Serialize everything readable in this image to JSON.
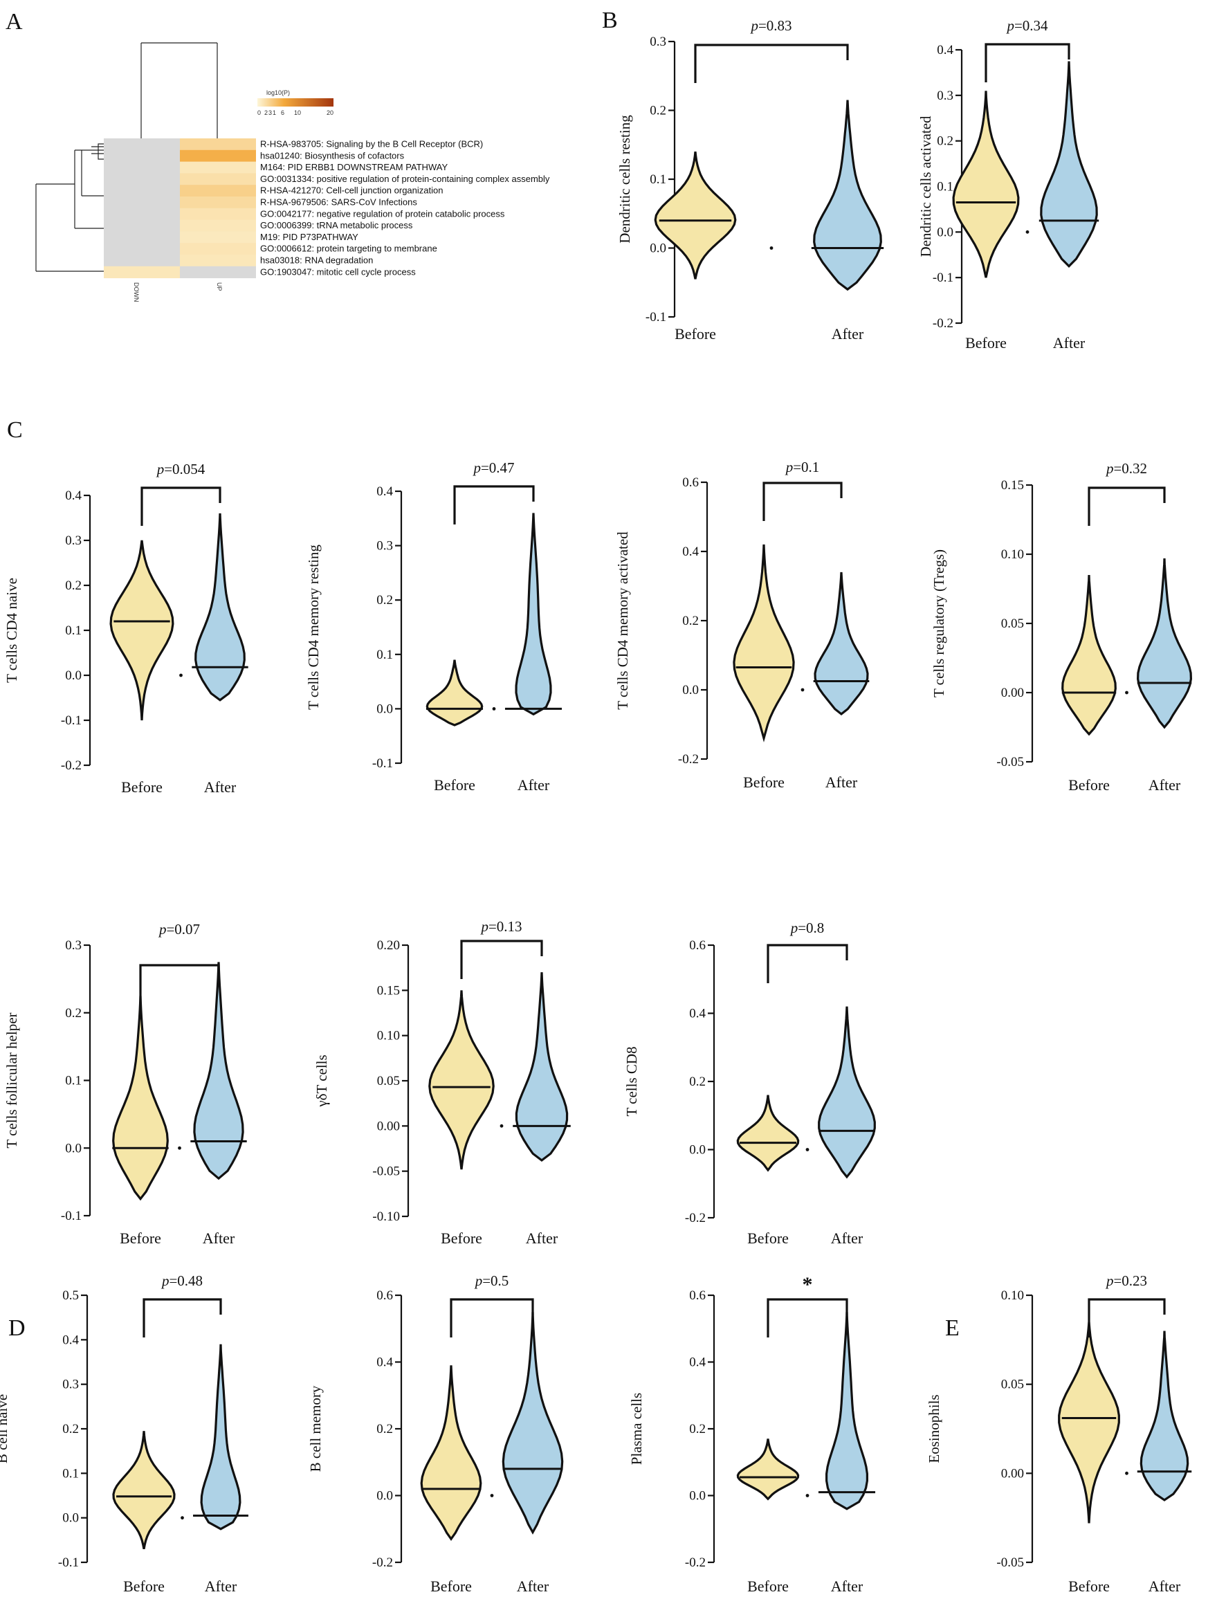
{
  "colors": {
    "before": "#f5e6a8",
    "after": "#aed2e6",
    "heat_low": "#fdf6d8",
    "heat_mid": "#f3a93c",
    "heat_high": "#a3360e",
    "heat_na": "#d9d9d9"
  },
  "heatmap": {
    "panel_label": "A",
    "legend_title": "log10(P)",
    "legend_ticks": [
      "0",
      "2",
      "3",
      "1",
      "6",
      "10",
      "20"
    ],
    "columns": [
      "DOWN",
      "UP"
    ],
    "terms": [
      "R-HSA-983705: Signaling by the B Cell Receptor (BCR)",
      "hsa01240: Biosynthesis of cofactors",
      "M164: PID ERBB1 DOWNSTREAM PATHWAY",
      "GO:0031334: positive regulation of protein-containing complex assembly",
      "R-HSA-421270: Cell-cell junction organization",
      "R-HSA-9679506: SARS-CoV Infections",
      "GO:0042177: negative regulation of protein catabolic process",
      "GO:0006399: tRNA metabolic process",
      "M19: PID P73PATHWAY",
      "GO:0006612: protein targeting to membrane",
      "hsa03018: RNA degradation",
      "GO:1903047: mitotic cell cycle process"
    ],
    "up_level": [
      0.25,
      0.55,
      0.12,
      0.18,
      0.3,
      0.22,
      0.15,
      0.12,
      0.1,
      0.14,
      0.12,
      null
    ],
    "down_level": [
      null,
      null,
      null,
      null,
      null,
      null,
      null,
      null,
      null,
      null,
      null,
      0.12
    ]
  },
  "panel_labels": [
    "B",
    "C",
    "D",
    "E"
  ],
  "chart_data": [
    {
      "type": "violin",
      "panel": "B",
      "ylabel": "Dendritic cells resting",
      "categories": [
        "Before",
        "After"
      ],
      "ylim": [
        -0.1,
        0.3
      ],
      "yticks": [
        "0.3",
        "0.2",
        "0.1",
        "0.0",
        "-0.1"
      ],
      "pvalue": "0.83",
      "series": [
        {
          "name": "Before",
          "min": -0.045,
          "max": 0.14,
          "median": 0.04
        },
        {
          "name": "After",
          "min": -0.06,
          "max": 0.215,
          "median": 0.0
        }
      ]
    },
    {
      "type": "violin",
      "panel": "B",
      "ylabel": "Dendritic cells activated",
      "categories": [
        "Before",
        "After"
      ],
      "ylim": [
        -0.2,
        0.4
      ],
      "yticks": [
        "0.4",
        "0.3",
        "0.2",
        "0.1",
        "0.0",
        "-0.1",
        "-0.2"
      ],
      "pvalue": "0.34",
      "series": [
        {
          "name": "Before",
          "min": -0.1,
          "max": 0.31,
          "median": 0.065
        },
        {
          "name": "After",
          "min": -0.075,
          "max": 0.375,
          "median": 0.025
        }
      ]
    },
    {
      "type": "violin",
      "panel": "C",
      "ylabel": "T cells CD4 naive",
      "categories": [
        "Before",
        "After"
      ],
      "ylim": [
        -0.2,
        0.4
      ],
      "yticks": [
        "0.4",
        "0.3",
        "0.2",
        "0.1",
        "0.0",
        "-0.1",
        "-0.2"
      ],
      "pvalue": "0.054",
      "series": [
        {
          "name": "Before",
          "min": -0.1,
          "max": 0.3,
          "median": 0.12
        },
        {
          "name": "After",
          "min": -0.055,
          "max": 0.36,
          "median": 0.018
        }
      ]
    },
    {
      "type": "violin",
      "panel": "C",
      "ylabel": "T cells CD4 memory resting",
      "categories": [
        "Before",
        "After"
      ],
      "ylim": [
        -0.1,
        0.4
      ],
      "yticks": [
        "0.4",
        "0.3",
        "0.2",
        "0.1",
        "0.0",
        "-0.1"
      ],
      "pvalue": "0.47",
      "series": [
        {
          "name": "Before",
          "min": -0.03,
          "max": 0.09,
          "median": 0.0
        },
        {
          "name": "After",
          "min": -0.01,
          "max": 0.36,
          "median": 0.0
        }
      ]
    },
    {
      "type": "violin",
      "panel": "C",
      "ylabel": "T cells CD4 memory activated",
      "categories": [
        "Before",
        "After"
      ],
      "ylim": [
        -0.2,
        0.6
      ],
      "yticks": [
        "0.6",
        "0.4",
        "0.2",
        "0.0",
        "-0.2"
      ],
      "pvalue": "0.1",
      "series": [
        {
          "name": "Before",
          "min": -0.14,
          "max": 0.42,
          "median": 0.065
        },
        {
          "name": "After",
          "min": -0.07,
          "max": 0.34,
          "median": 0.025
        }
      ]
    },
    {
      "type": "violin",
      "panel": "C",
      "ylabel": "T cells regulatory (Tregs)",
      "categories": [
        "Before",
        "After"
      ],
      "ylim": [
        -0.05,
        0.15
      ],
      "yticks": [
        "0.15",
        "0.10",
        "0.05",
        "0.00",
        "-0.05"
      ],
      "pvalue": "0.32",
      "series": [
        {
          "name": "Before",
          "min": -0.03,
          "max": 0.085,
          "median": 0.0
        },
        {
          "name": "After",
          "min": -0.025,
          "max": 0.097,
          "median": 0.007
        }
      ]
    },
    {
      "type": "violin",
      "panel": "C",
      "ylabel": "T cells follicular helper",
      "categories": [
        "Before",
        "After"
      ],
      "ylim": [
        -0.1,
        0.3
      ],
      "yticks": [
        "0.3",
        "0.2",
        "0.1",
        "0.0",
        "-0.1"
      ],
      "pvalue": "0.07",
      "series": [
        {
          "name": "Before",
          "min": -0.075,
          "max": 0.225,
          "median": 0.0
        },
        {
          "name": "After",
          "min": -0.045,
          "max": 0.275,
          "median": 0.01
        }
      ]
    },
    {
      "type": "violin",
      "panel": "C",
      "ylabel": "γδT cells",
      "categories": [
        "Before",
        "After"
      ],
      "ylim": [
        -0.1,
        0.2
      ],
      "yticks": [
        "0.20",
        "0.15",
        "0.10",
        "0.05",
        "0.00",
        "-0.05",
        "-0.10"
      ],
      "pvalue": "0.13",
      "series": [
        {
          "name": "Before",
          "min": -0.048,
          "max": 0.15,
          "median": 0.043
        },
        {
          "name": "After",
          "min": -0.038,
          "max": 0.17,
          "median": 0.0
        }
      ]
    },
    {
      "type": "violin",
      "panel": "C",
      "ylabel": "T cells CD8",
      "categories": [
        "Before",
        "After"
      ],
      "ylim": [
        -0.2,
        0.6
      ],
      "yticks": [
        "0.6",
        "0.4",
        "0.2",
        "0.0",
        "-0.2"
      ],
      "pvalue": "0.8",
      "series": [
        {
          "name": "Before",
          "min": -0.06,
          "max": 0.16,
          "median": 0.02
        },
        {
          "name": "After",
          "min": -0.08,
          "max": 0.42,
          "median": 0.055
        }
      ]
    },
    {
      "type": "violin",
      "panel": "D",
      "ylabel": "B cell naive",
      "categories": [
        "Before",
        "After"
      ],
      "ylim": [
        -0.1,
        0.5
      ],
      "yticks": [
        "0.5",
        "0.4",
        "0.3",
        "0.2",
        "0.1",
        "0.0",
        "-0.1"
      ],
      "pvalue": "0.48",
      "series": [
        {
          "name": "Before",
          "min": -0.07,
          "max": 0.195,
          "median": 0.048
        },
        {
          "name": "After",
          "min": -0.025,
          "max": 0.39,
          "median": 0.005
        }
      ]
    },
    {
      "type": "violin",
      "panel": "D",
      "ylabel": "B cell memory",
      "categories": [
        "Before",
        "After"
      ],
      "ylim": [
        -0.2,
        0.6
      ],
      "yticks": [
        "0.6",
        "0.4",
        "0.2",
        "0.0",
        "-0.2"
      ],
      "pvalue": "0.5",
      "series": [
        {
          "name": "Before",
          "min": -0.13,
          "max": 0.39,
          "median": 0.02
        },
        {
          "name": "After",
          "min": -0.11,
          "max": 0.55,
          "median": 0.08
        }
      ]
    },
    {
      "type": "violin",
      "panel": "D",
      "ylabel": "Plasma cells",
      "categories": [
        "Before",
        "After"
      ],
      "ylim": [
        -0.2,
        0.6
      ],
      "yticks": [
        "0.6",
        "0.4",
        "0.2",
        "0.0",
        "-0.2"
      ],
      "pvalue": "*",
      "series": [
        {
          "name": "Before",
          "min": -0.01,
          "max": 0.17,
          "median": 0.055
        },
        {
          "name": "After",
          "min": -0.04,
          "max": 0.55,
          "median": 0.01
        }
      ]
    },
    {
      "type": "violin",
      "panel": "E",
      "ylabel": "Eosinophils",
      "categories": [
        "Before",
        "After"
      ],
      "ylim": [
        -0.05,
        0.1
      ],
      "yticks": [
        "0.10",
        "0.05",
        "0.00",
        "-0.05"
      ],
      "pvalue": "0.23",
      "series": [
        {
          "name": "Before",
          "min": -0.028,
          "max": 0.085,
          "median": 0.031
        },
        {
          "name": "After",
          "min": -0.015,
          "max": 0.08,
          "median": 0.001
        }
      ]
    }
  ]
}
